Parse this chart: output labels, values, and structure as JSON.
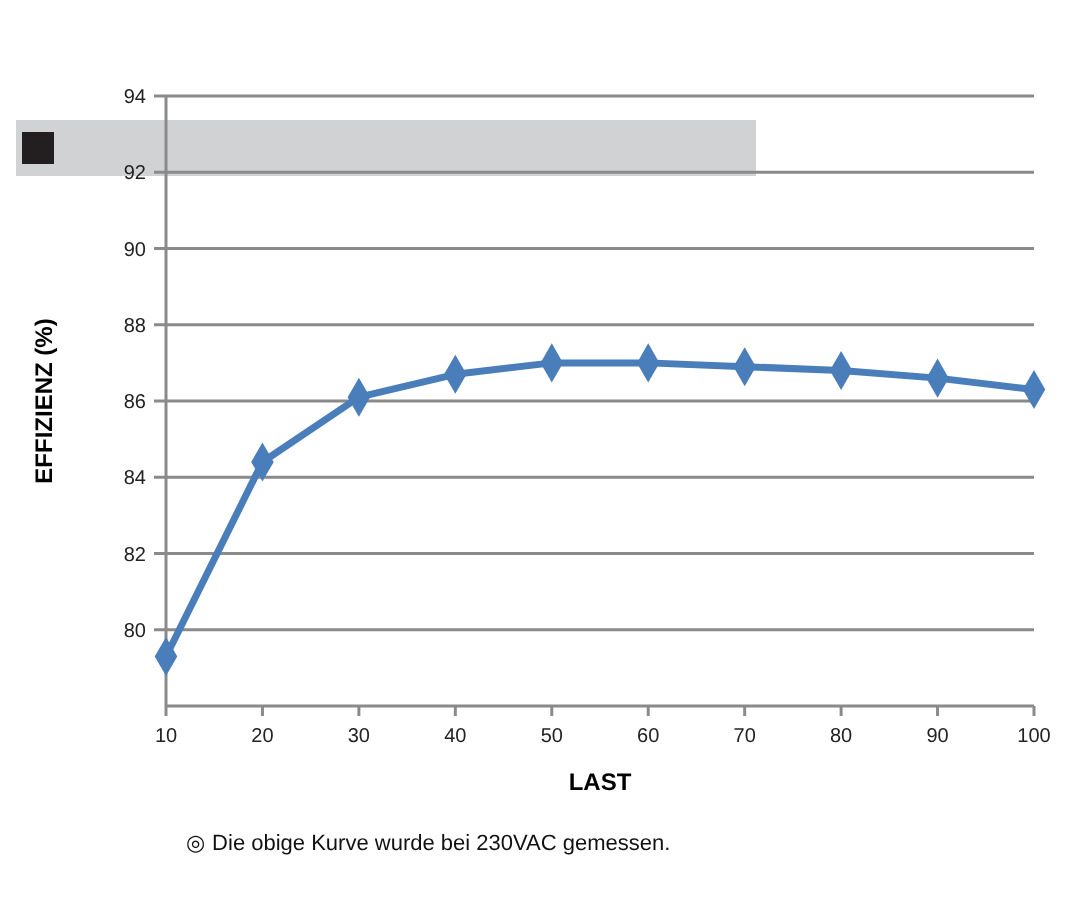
{
  "chart_data": {
    "type": "line",
    "xlabel": "LAST",
    "ylabel": "EFFIZIENZ (%)",
    "x": [
      10,
      20,
      30,
      40,
      50,
      60,
      70,
      80,
      90,
      100
    ],
    "series": [
      {
        "color": "#4a7ebb",
        "values": [
          79.3,
          84.4,
          86.1,
          86.7,
          87.0,
          87.0,
          86.9,
          86.8,
          86.6,
          86.3
        ]
      }
    ],
    "xlim": [
      10,
      100
    ],
    "xticks": [
      10,
      20,
      30,
      40,
      50,
      60,
      70,
      80,
      90,
      100
    ],
    "ylim": [
      78,
      94
    ],
    "yticks": [
      80,
      82,
      84,
      86,
      88,
      90,
      92,
      94
    ],
    "grid": "y",
    "marker": "diamond",
    "line_style": "solid",
    "annotations": [
      "◎ Die obige Kurve wurde bei 230VAC gemessen."
    ]
  }
}
